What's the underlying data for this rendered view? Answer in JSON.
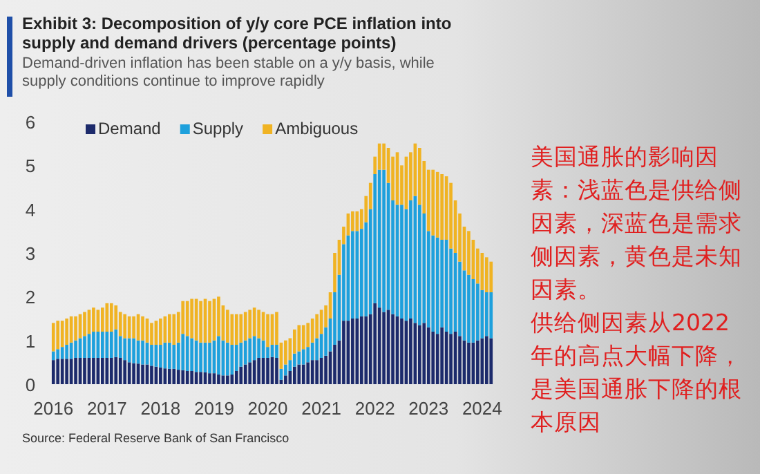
{
  "chart_data": {
    "type": "bar",
    "stacked": true,
    "title": "Exhibit 3: Decomposition of y/y core PCE inflation into supply and demand drivers (percentage points)",
    "subtitle": "Demand-driven inflation has been stable on a y/y basis, while supply conditions continue to improve rapidly",
    "categories": [
      "2016",
      null,
      null,
      null,
      null,
      null,
      null,
      null,
      null,
      null,
      null,
      null,
      "2017",
      null,
      null,
      null,
      null,
      null,
      null,
      null,
      null,
      null,
      null,
      null,
      "2018",
      null,
      null,
      null,
      null,
      null,
      null,
      null,
      null,
      null,
      null,
      null,
      "2019",
      null,
      null,
      null,
      null,
      null,
      null,
      null,
      null,
      null,
      null,
      null,
      "2020",
      null,
      null,
      null,
      null,
      null,
      null,
      null,
      null,
      null,
      null,
      null,
      "2021",
      null,
      null,
      null,
      null,
      null,
      null,
      null,
      null,
      null,
      null,
      null,
      "2022",
      null,
      null,
      null,
      null,
      null,
      null,
      null,
      null,
      null,
      null,
      null,
      "2023",
      null,
      null,
      null,
      null,
      null,
      null,
      null,
      null,
      null,
      null,
      null,
      "2024",
      null,
      null
    ],
    "series": [
      {
        "name": "Demand",
        "color": "#1c2a6b",
        "values": [
          0.55,
          0.58,
          0.58,
          0.58,
          0.58,
          0.6,
          0.6,
          0.6,
          0.6,
          0.6,
          0.6,
          0.6,
          0.6,
          0.6,
          0.62,
          0.6,
          0.55,
          0.5,
          0.48,
          0.47,
          0.45,
          0.45,
          0.42,
          0.4,
          0.38,
          0.36,
          0.35,
          0.35,
          0.33,
          0.32,
          0.3,
          0.3,
          0.28,
          0.28,
          0.27,
          0.25,
          0.25,
          0.22,
          0.2,
          0.2,
          0.22,
          0.3,
          0.4,
          0.45,
          0.5,
          0.55,
          0.6,
          0.6,
          0.6,
          0.62,
          0.6,
          0.1,
          0.2,
          0.3,
          0.4,
          0.45,
          0.45,
          0.5,
          0.55,
          0.55,
          0.6,
          0.65,
          0.75,
          0.9,
          1.0,
          1.45,
          1.45,
          1.5,
          1.5,
          1.55,
          1.55,
          1.6,
          1.85,
          1.75,
          1.65,
          1.7,
          1.6,
          1.55,
          1.5,
          1.45,
          1.5,
          1.4,
          1.35,
          1.4,
          1.3,
          1.2,
          1.15,
          1.3,
          1.2,
          1.15,
          1.2,
          1.1,
          1.0,
          0.95,
          0.95,
          1.0,
          1.05,
          1.1,
          1.05
        ]
      },
      {
        "name": "Supply",
        "color": "#1ea0dc",
        "values": [
          0.2,
          0.22,
          0.27,
          0.32,
          0.37,
          0.4,
          0.45,
          0.5,
          0.55,
          0.6,
          0.6,
          0.6,
          0.6,
          0.6,
          0.63,
          0.5,
          0.5,
          0.55,
          0.57,
          0.53,
          0.55,
          0.5,
          0.48,
          0.5,
          0.52,
          0.59,
          0.6,
          0.55,
          0.62,
          0.83,
          0.8,
          0.75,
          0.72,
          0.67,
          0.68,
          0.7,
          0.75,
          0.88,
          0.8,
          0.75,
          0.68,
          0.6,
          0.55,
          0.55,
          0.55,
          0.55,
          0.45,
          0.4,
          0.25,
          0.28,
          0.3,
          0.25,
          0.25,
          0.25,
          0.3,
          0.3,
          0.35,
          0.35,
          0.4,
          0.5,
          0.55,
          0.65,
          0.75,
          1.2,
          1.5,
          1.75,
          1.95,
          2.0,
          2.0,
          2.0,
          2.15,
          2.4,
          2.95,
          3.15,
          3.25,
          2.9,
          2.6,
          2.55,
          2.6,
          2.55,
          2.7,
          2.9,
          2.75,
          2.5,
          2.2,
          2.2,
          2.2,
          2.0,
          2.1,
          1.95,
          1.8,
          1.7,
          1.6,
          1.55,
          1.45,
          1.3,
          1.1,
          1.0,
          1.05
        ]
      },
      {
        "name": "Ambiguous",
        "color": "#f0b323",
        "values": [
          0.65,
          0.65,
          0.6,
          0.6,
          0.6,
          0.55,
          0.55,
          0.55,
          0.55,
          0.55,
          0.5,
          0.55,
          0.65,
          0.65,
          0.55,
          0.55,
          0.55,
          0.5,
          0.5,
          0.6,
          0.55,
          0.55,
          0.5,
          0.55,
          0.6,
          0.6,
          0.65,
          0.7,
          0.7,
          0.75,
          0.8,
          0.9,
          0.95,
          0.95,
          1.0,
          0.95,
          0.95,
          0.9,
          0.8,
          0.75,
          0.7,
          0.7,
          0.65,
          0.65,
          0.65,
          0.65,
          0.65,
          0.65,
          0.75,
          0.7,
          0.75,
          0.6,
          0.55,
          0.5,
          0.55,
          0.6,
          0.55,
          0.55,
          0.55,
          0.55,
          0.55,
          0.5,
          0.6,
          0.9,
          0.8,
          0.4,
          0.5,
          0.45,
          0.45,
          0.45,
          0.6,
          0.6,
          0.4,
          0.6,
          0.6,
          0.8,
          1.0,
          1.2,
          0.9,
          1.2,
          1.1,
          1.2,
          1.3,
          1.2,
          1.4,
          1.5,
          1.5,
          1.5,
          1.45,
          1.5,
          1.2,
          1.1,
          1.0,
          1.0,
          0.9,
          0.8,
          0.85,
          0.8,
          0.7
        ]
      }
    ],
    "ylim": [
      0,
      6
    ],
    "yticks": [
      0,
      1,
      2,
      3,
      4,
      5,
      6
    ],
    "grid": false,
    "legend": "top left",
    "annotations": [
      "美国通胀的影响因素：浅蓝色是供给侧因素，深蓝色是需求侧因素，黄色是未知因素。",
      "供给侧因素从2022年的高点大幅下降，是美国通胀下降的根本原因",
      "Source: Federal Reserve Bank of San Francisco"
    ]
  }
}
